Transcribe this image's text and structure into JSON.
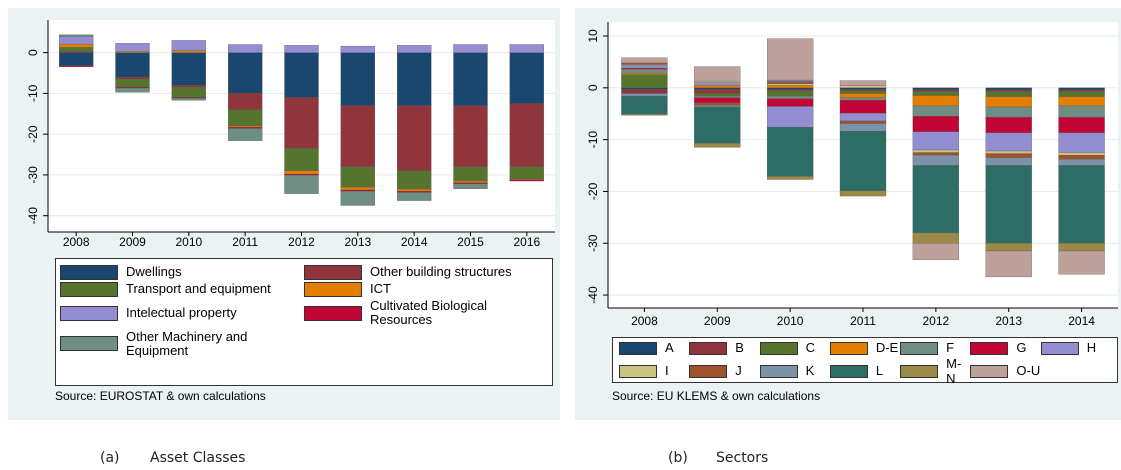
{
  "chart_data": [
    {
      "type": "bar",
      "stacked": true,
      "grid": true,
      "caption_label": "(a)",
      "caption": "Asset Classes",
      "note": "Source: EUROSTAT & own calculations",
      "categories": [
        "2008",
        "2009",
        "2010",
        "2011",
        "2012",
        "2013",
        "2014",
        "2015",
        "2016"
      ],
      "ylim": [
        -44,
        8
      ],
      "yticks": [
        0,
        -10,
        -20,
        -30,
        -40
      ],
      "series": [
        {
          "name": "Dwellings",
          "color": "#1a476f",
          "values": [
            -3.2,
            -6,
            -8,
            -10,
            -11,
            -13,
            -13,
            -13,
            -12.5
          ]
        },
        {
          "name": "Other building structures",
          "color": "#90353b",
          "values": [
            0.3,
            -0.5,
            -0.5,
            -4,
            -12.5,
            -15,
            -16,
            -15,
            -15.5
          ]
        },
        {
          "name": "Transport and equipment",
          "color": "#55752f",
          "values": [
            1.0,
            -2,
            -2.5,
            -4,
            -5.5,
            -5,
            -4.5,
            -3.5,
            -3
          ]
        },
        {
          "name": "ICT",
          "color": "#e37e00",
          "values": [
            0.8,
            0.3,
            0.5,
            -0.3,
            -0.8,
            -0.7,
            -0.5,
            -0.4,
            -0.2
          ]
        },
        {
          "name": "Intelectual property",
          "color": "#938dd2",
          "values": [
            1.8,
            2,
            2.5,
            2,
            1.8,
            1.6,
            1.8,
            2,
            2
          ]
        },
        {
          "name": "Cultivated Biological Resources",
          "color": "#c10534",
          "values": [
            -0.3,
            -0.2,
            -0.2,
            -0.3,
            -0.3,
            -0.3,
            -0.3,
            -0.3,
            -0.3
          ]
        },
        {
          "name": "Other Machinery and Equipment",
          "color": "#6e8e84",
          "values": [
            0.5,
            -1,
            -0.5,
            -3,
            -4.5,
            -3.5,
            -2,
            -1.2,
            0
          ]
        }
      ]
    },
    {
      "type": "bar",
      "stacked": true,
      "grid": true,
      "caption_label": "(b)",
      "caption": "Sectors",
      "note": "Source: EU KLEMS & own calculations",
      "categories": [
        "2008",
        "2009",
        "2010",
        "2011",
        "2012",
        "2013",
        "2014"
      ],
      "ylim": [
        -42.5,
        12.7
      ],
      "yticks": [
        10,
        0,
        -10,
        -20,
        -30,
        -40
      ],
      "series": [
        {
          "name": "A",
          "color": "#1a476f",
          "values": [
            -0.3,
            -0.3,
            -0.3,
            -0.3,
            -0.4,
            -0.4,
            -0.4
          ]
        },
        {
          "name": "B",
          "color": "#90353b",
          "values": [
            -0.8,
            -0.8,
            -0.3,
            -0.3,
            -0.3,
            -0.3,
            -0.3
          ]
        },
        {
          "name": "C",
          "color": "#55752f",
          "values": [
            2.5,
            -0.5,
            -1,
            -0.5,
            -0.8,
            -1,
            -1
          ]
        },
        {
          "name": "D-E",
          "color": "#e37e00",
          "values": [
            0.3,
            0.5,
            0.5,
            -0.8,
            -2,
            -2,
            -1.8
          ]
        },
        {
          "name": "F",
          "color": "#6e8e84",
          "values": [
            0.8,
            -0.3,
            -0.5,
            -0.5,
            -2,
            -2,
            -2.2
          ]
        },
        {
          "name": "G",
          "color": "#c10534",
          "values": [
            0.2,
            -1,
            -1.5,
            -2.5,
            -3,
            -3,
            -3
          ]
        },
        {
          "name": "H",
          "color": "#938dd2",
          "values": [
            0.5,
            0.5,
            -4,
            -1.5,
            -3.5,
            -3.5,
            -3.8
          ]
        },
        {
          "name": "I",
          "color": "#cac27e",
          "values": [
            0.2,
            0.3,
            0.3,
            0.4,
            -0.5,
            -0.5,
            -0.5
          ]
        },
        {
          "name": "J",
          "color": "#a0522d",
          "values": [
            0.3,
            -0.5,
            0.4,
            -0.5,
            -0.5,
            -0.8,
            -0.8
          ]
        },
        {
          "name": "K",
          "color": "#7b92a8",
          "values": [
            -0.5,
            -0.3,
            0.3,
            -1.5,
            -2,
            -1.5,
            -1.2
          ]
        },
        {
          "name": "L",
          "color": "#2d6d66",
          "values": [
            -3.5,
            -7,
            -9.5,
            -11.5,
            -13,
            -15,
            -15
          ]
        },
        {
          "name": "M-N",
          "color": "#9c8847",
          "values": [
            -0.2,
            -0.8,
            -0.6,
            -1,
            -2,
            -1.5,
            -1.5
          ]
        },
        {
          "name": "O-U",
          "color": "#bfa19c",
          "values": [
            1,
            2.8,
            8,
            1,
            -3.2,
            -5,
            -4.5
          ]
        }
      ]
    }
  ]
}
